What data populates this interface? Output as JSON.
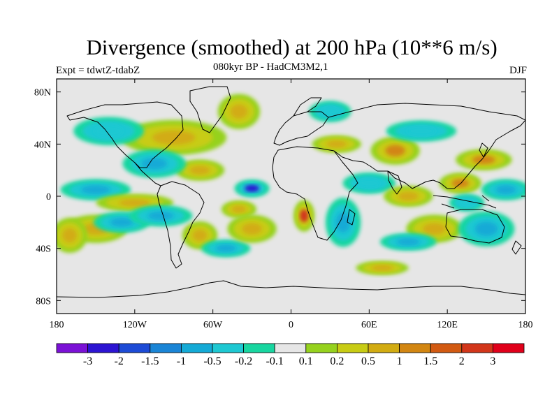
{
  "title": "Divergence (smoothed) at 200 hPa (10**6 m/s)",
  "subtitle": "080kyr BP - HadCM3M2,1",
  "experiment": "Expt = tdwtZ-tdabZ",
  "season": "DJF",
  "map": {
    "projection": "cylindrical equidistant",
    "lon_range": [
      -180,
      180
    ],
    "lat_range": [
      -90,
      90
    ],
    "x_ticks": [
      {
        "value": -180,
        "label": "180"
      },
      {
        "value": -120,
        "label": "120W"
      },
      {
        "value": -60,
        "label": "60W"
      },
      {
        "value": 0,
        "label": "0"
      },
      {
        "value": 60,
        "label": "60E"
      },
      {
        "value": 120,
        "label": "120E"
      },
      {
        "value": 180,
        "label": "180"
      }
    ],
    "y_ticks": [
      {
        "value": 80,
        "label": "80N"
      },
      {
        "value": 40,
        "label": "40N"
      },
      {
        "value": 0,
        "label": "0"
      },
      {
        "value": -40,
        "label": "40S"
      },
      {
        "value": -80,
        "label": "80S"
      }
    ],
    "background_color": "#e6e6e6"
  },
  "colorbar": {
    "colors": [
      "#7b12d6",
      "#2c14d2",
      "#1d4bd6",
      "#1a85d6",
      "#14aad6",
      "#1ec8d2",
      "#18d6a0",
      "#e6e6e6",
      "#96d21e",
      "#c8cc14",
      "#d2ac12",
      "#d28612",
      "#d25a12",
      "#d2361a",
      "#e0001a"
    ],
    "labels": [
      "-3",
      "-2",
      "-1.5",
      "-1",
      "-0.5",
      "-0.2",
      "-0.1",
      "0.1",
      "0.2",
      "0.5",
      "1",
      "1.5",
      "2",
      "3"
    ]
  },
  "chart_data": {
    "type": "heatmap",
    "variable": "Divergence (smoothed) at 200 hPa",
    "units": "10**6 m/s",
    "levels": [
      -3,
      -2,
      -1.5,
      -1,
      -0.5,
      -0.2,
      -0.1,
      0.1,
      0.2,
      0.5,
      1,
      1.5,
      2,
      3
    ],
    "features": [
      {
        "lon": -30,
        "lat": 6,
        "value": -2.5,
        "rx": 10,
        "ry": 5
      },
      {
        "lon": 10,
        "lat": -15,
        "value": 2.2,
        "rx": 6,
        "ry": 9
      },
      {
        "lon": 80,
        "lat": 35,
        "value": 1.4,
        "rx": 14,
        "ry": 8
      },
      {
        "lon": 148,
        "lat": 28,
        "value": 1.2,
        "rx": 16,
        "ry": 6
      },
      {
        "lon": 130,
        "lat": 10,
        "value": 1.3,
        "rx": 12,
        "ry": 6
      },
      {
        "lon": -40,
        "lat": -10,
        "value": 0.8,
        "rx": 10,
        "ry": 5
      },
      {
        "lon": -90,
        "lat": 45,
        "value": 0.6,
        "rx": 30,
        "ry": 10
      },
      {
        "lon": -70,
        "lat": 20,
        "value": 0.8,
        "rx": 14,
        "ry": 6
      },
      {
        "lon": -105,
        "lat": 25,
        "value": -0.6,
        "rx": 18,
        "ry": 8
      },
      {
        "lon": -150,
        "lat": 5,
        "value": -0.7,
        "rx": 20,
        "ry": 6
      },
      {
        "lon": -120,
        "lat": -5,
        "value": 0.6,
        "rx": 22,
        "ry": 5
      },
      {
        "lon": -150,
        "lat": -25,
        "value": 0.6,
        "rx": 18,
        "ry": 8
      },
      {
        "lon": -130,
        "lat": -20,
        "value": -0.6,
        "rx": 16,
        "ry": 6
      },
      {
        "lon": -100,
        "lat": -15,
        "value": -0.7,
        "rx": 18,
        "ry": 6
      },
      {
        "lon": -70,
        "lat": -30,
        "value": 0.6,
        "rx": 10,
        "ry": 8
      },
      {
        "lon": -50,
        "lat": -40,
        "value": -0.6,
        "rx": 14,
        "ry": 5
      },
      {
        "lon": -30,
        "lat": -25,
        "value": 0.5,
        "rx": 14,
        "ry": 8
      },
      {
        "lon": 35,
        "lat": 40,
        "value": 0.6,
        "rx": 14,
        "ry": 5
      },
      {
        "lon": 40,
        "lat": -20,
        "value": -0.7,
        "rx": 10,
        "ry": 14
      },
      {
        "lon": 60,
        "lat": 10,
        "value": -0.5,
        "rx": 15,
        "ry": 6
      },
      {
        "lon": 90,
        "lat": 0,
        "value": 0.8,
        "rx": 14,
        "ry": 6
      },
      {
        "lon": 100,
        "lat": 50,
        "value": -0.5,
        "rx": 20,
        "ry": 6
      },
      {
        "lon": 110,
        "lat": -25,
        "value": 0.7,
        "rx": 16,
        "ry": 8
      },
      {
        "lon": 150,
        "lat": -25,
        "value": -0.6,
        "rx": 16,
        "ry": 10
      },
      {
        "lon": 135,
        "lat": -5,
        "value": -0.5,
        "rx": 10,
        "ry": 5
      },
      {
        "lon": -40,
        "lat": 65,
        "value": 0.6,
        "rx": 12,
        "ry": 10
      },
      {
        "lon": -140,
        "lat": 50,
        "value": -0.5,
        "rx": 20,
        "ry": 8
      },
      {
        "lon": 30,
        "lat": 65,
        "value": -0.5,
        "rx": 12,
        "ry": 6
      },
      {
        "lon": 90,
        "lat": -35,
        "value": -0.6,
        "rx": 16,
        "ry": 5
      },
      {
        "lon": 70,
        "lat": -55,
        "value": 0.5,
        "rx": 15,
        "ry": 4
      },
      {
        "lon": 165,
        "lat": 5,
        "value": -0.7,
        "rx": 14,
        "ry": 6
      },
      {
        "lon": -170,
        "lat": -30,
        "value": 0.6,
        "rx": 10,
        "ry": 10
      }
    ]
  }
}
